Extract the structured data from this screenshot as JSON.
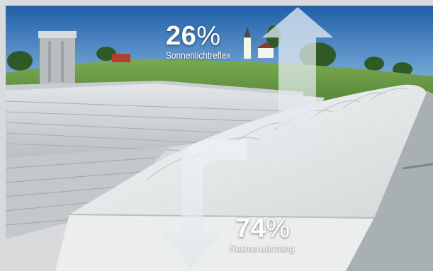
{
  "top_stat": {
    "value": "26",
    "unit": "%",
    "caption": "Sonnenlichtreflex"
  },
  "bottom_stat": {
    "value": "74",
    "unit": "%",
    "caption": "Raumerwärmung"
  },
  "colors": {
    "frame": "#d9dadb",
    "sky": "#3f7fc0",
    "grass": "#6fa24a",
    "roof": "#d7dadb",
    "dome": "#eceeee",
    "arrow": "#e9eef2"
  }
}
